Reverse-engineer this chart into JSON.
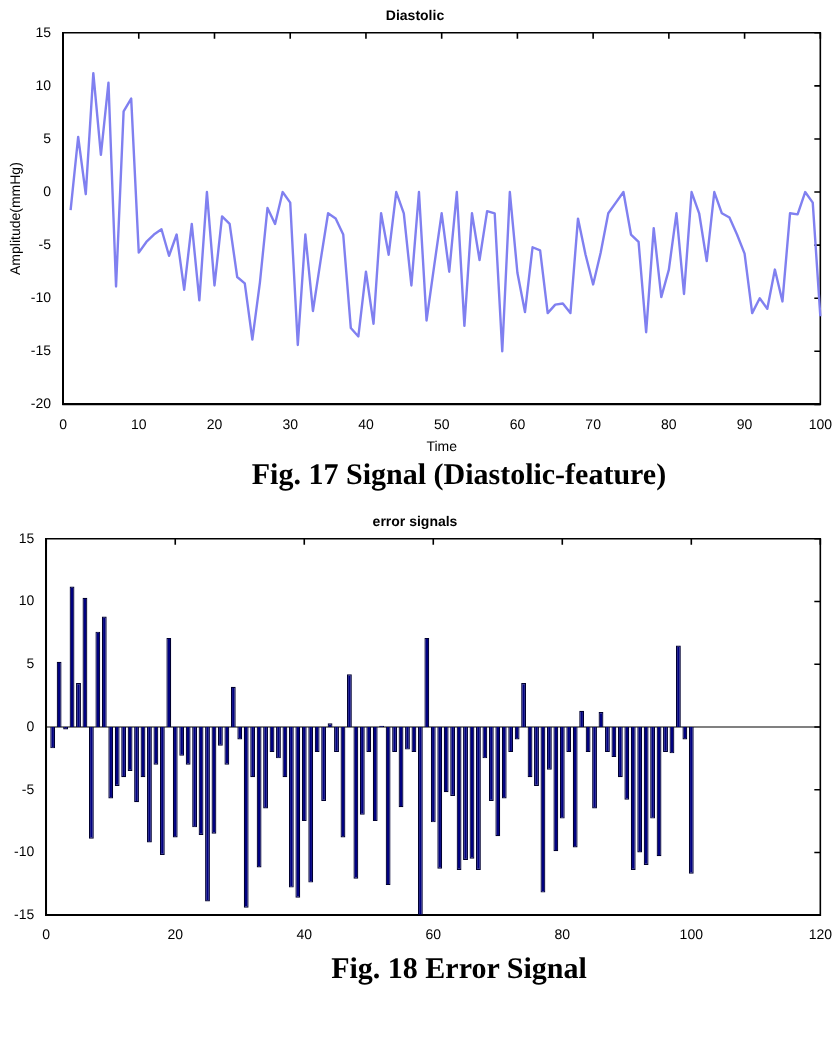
{
  "chart_data": [
    {
      "type": "line",
      "title": "Diastolic",
      "xlabel": "Time",
      "ylabel": "Amplitude(mmHg)",
      "annotations": [
        "Fig. 17 Signal (Diastolic-feature)"
      ],
      "x": [
        1,
        2,
        3,
        4,
        5,
        6,
        7,
        8,
        9,
        10,
        11,
        12,
        13,
        14,
        15,
        16,
        17,
        18,
        19,
        20,
        21,
        22,
        23,
        24,
        25,
        26,
        27,
        28,
        29,
        30,
        31,
        32,
        33,
        34,
        35,
        36,
        37,
        38,
        39,
        40,
        41,
        42,
        43,
        44,
        45,
        46,
        47,
        48,
        49,
        50,
        51,
        52,
        53,
        54,
        55,
        56,
        57,
        58,
        59,
        60,
        61,
        62,
        63,
        64,
        65,
        66,
        67,
        68,
        69,
        70,
        71,
        72,
        73,
        74,
        75,
        76,
        77,
        78,
        79,
        80,
        81,
        82,
        83,
        84,
        85,
        86,
        87,
        88,
        89,
        90,
        91,
        92,
        93,
        94,
        95,
        96,
        97,
        98,
        99,
        100
      ],
      "series": [
        {
          "color": "#8080f0",
          "values": [
            -1.7,
            5.2,
            -0.2,
            11.2,
            3.5,
            10.3,
            -8.9,
            7.6,
            8.8,
            -5.7,
            -4.7,
            -4.0,
            -3.5,
            -6.0,
            -4.0,
            -9.2,
            -3.0,
            -10.2,
            0,
            -8.8,
            -2.3,
            -3.0,
            -8.0,
            -8.6,
            -13.9,
            -8.5,
            -1.5,
            -3.0,
            0,
            -1.0,
            -14.4,
            -4.0,
            -11.2,
            -6.5,
            -2.0,
            -2.5,
            -4.0,
            -12.8,
            -13.6,
            -7.5,
            -12.4,
            -2.0,
            -5.9,
            0,
            -2.0,
            -8.8,
            0,
            -12.1,
            -7.0,
            -2.0,
            -7.5,
            0,
            -12.6,
            -2.0,
            -6.4,
            -1.8,
            -2.0,
            -15.0,
            0,
            -7.6,
            -11.3,
            -5.2,
            -5.5,
            -11.4,
            -10.6,
            -10.5,
            -11.4,
            -2.5,
            -5.9,
            -8.7,
            -5.7,
            -2.0,
            -1.0,
            0,
            -4.0,
            -4.7,
            -13.2,
            -3.4,
            -9.9,
            -7.3,
            -2.0,
            -9.6,
            0,
            -2.0,
            -6.5,
            0,
            -2.0,
            -2.4,
            -4.0,
            -5.8,
            -11.4,
            -10.0,
            -11.0,
            -7.3,
            -10.3,
            -2.0,
            -2.1,
            0,
            -1.0,
            -11.7
          ]
        }
      ],
      "xlim": [
        0,
        100
      ],
      "xticks": [
        0,
        10,
        20,
        30,
        40,
        50,
        60,
        70,
        80,
        90,
        100
      ],
      "ylim": [
        -20,
        15
      ],
      "yticks": [
        -20,
        -15,
        -10,
        -5,
        0,
        5,
        10,
        15
      ],
      "grid": false,
      "legend": false,
      "marker": "none",
      "line_style": "solid"
    },
    {
      "type": "bar",
      "title": "error signals",
      "annotations": [
        "Fig. 18 Error Signal"
      ],
      "x": [
        1,
        2,
        3,
        4,
        5,
        6,
        7,
        8,
        9,
        10,
        11,
        12,
        13,
        14,
        15,
        16,
        17,
        18,
        19,
        20,
        21,
        22,
        23,
        24,
        25,
        26,
        27,
        28,
        29,
        30,
        31,
        32,
        33,
        34,
        35,
        36,
        37,
        38,
        39,
        40,
        41,
        42,
        43,
        44,
        45,
        46,
        47,
        48,
        49,
        50,
        51,
        52,
        53,
        54,
        55,
        56,
        57,
        58,
        59,
        60,
        61,
        62,
        63,
        64,
        65,
        66,
        67,
        68,
        69,
        70,
        71,
        72,
        73,
        74,
        75,
        76,
        77,
        78,
        79,
        80,
        81,
        82,
        83,
        84,
        85,
        86,
        87,
        88,
        89,
        90,
        91,
        92,
        93,
        94,
        95,
        96,
        97,
        98,
        99,
        100
      ],
      "series": [
        {
          "color": "#000080",
          "values": [
            -1.7,
            5.2,
            -0.2,
            11.2,
            3.5,
            10.3,
            -8.9,
            7.6,
            8.8,
            -5.7,
            -4.7,
            -4.0,
            -3.5,
            -6.0,
            -4.0,
            -9.2,
            -3.0,
            -10.2,
            7.1,
            -8.8,
            -2.3,
            -3.0,
            -8.0,
            -8.6,
            -13.9,
            -8.5,
            -1.5,
            -3.0,
            3.2,
            -1.0,
            -14.4,
            -4.0,
            -11.2,
            -6.5,
            -2.0,
            -2.5,
            -4.0,
            -12.8,
            -13.6,
            -7.5,
            -12.4,
            -2.0,
            -5.9,
            0.3,
            -2.0,
            -8.8,
            4.2,
            -12.1,
            -7.0,
            -2.0,
            -7.5,
            0.1,
            -12.6,
            -2.0,
            -6.4,
            -1.8,
            -2.0,
            -15.0,
            7.1,
            -7.6,
            -11.3,
            -5.2,
            -5.5,
            -11.4,
            -10.6,
            -10.5,
            -11.4,
            -2.5,
            -5.9,
            -8.7,
            -5.7,
            -2.0,
            -1.0,
            3.5,
            -4.0,
            -4.7,
            -13.2,
            -3.4,
            -9.9,
            -7.3,
            -2.0,
            -9.6,
            1.3,
            -2.0,
            -6.5,
            1.2,
            -2.0,
            -2.4,
            -4.0,
            -5.8,
            -11.4,
            -10.0,
            -11.0,
            -7.3,
            -10.3,
            -2.0,
            -2.1,
            6.5,
            -1.0,
            -11.7
          ]
        }
      ],
      "xlim": [
        0,
        120
      ],
      "xticks": [
        0,
        20,
        40,
        60,
        80,
        100,
        120
      ],
      "ylim": [
        -15,
        15
      ],
      "yticks": [
        -15,
        -10,
        -5,
        0,
        5,
        10,
        15
      ],
      "grid": false,
      "legend": false,
      "ref_lines": [
        {
          "axis": "y",
          "value": 0,
          "color": "#808080"
        }
      ]
    }
  ]
}
